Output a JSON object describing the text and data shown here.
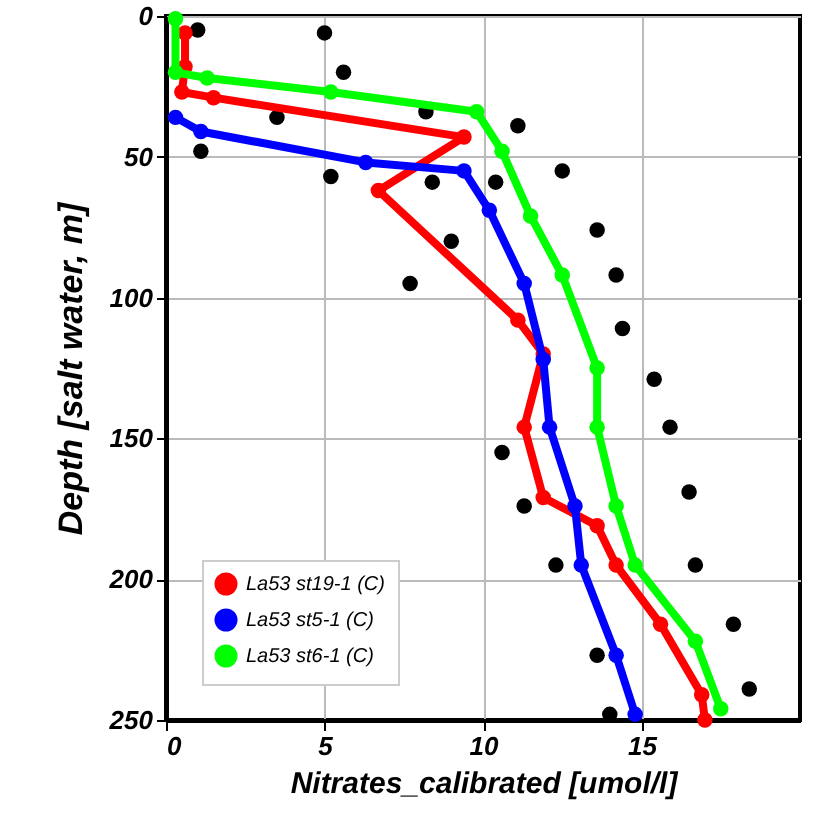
{
  "chart_data": {
    "type": "line",
    "xlabel": "Nitrates_calibrated [umol/l]",
    "ylabel": "Depth [salt water, m]",
    "xlim": [
      0,
      20
    ],
    "xticks": [
      0,
      5,
      10,
      15
    ],
    "ylim": [
      250,
      0
    ],
    "yticks": [
      0,
      50,
      100,
      150,
      200,
      250
    ],
    "grid": true,
    "legend": "bottom left",
    "marker": "circle",
    "series": [
      {
        "type": "scatter",
        "color": "#000000",
        "x": [
          1.0,
          3.5,
          5.0,
          5.6,
          8.2,
          1.1,
          5.2,
          8.4,
          10.4,
          9.0,
          7.7,
          11.1,
          12.5,
          13.6,
          14.2,
          14.4,
          15.4,
          15.9,
          16.5,
          16.7,
          17.9,
          18.4,
          10.6,
          11.3,
          12.3,
          13.6,
          14.0
        ],
        "values": [
          5,
          36,
          6,
          20,
          34,
          48,
          57,
          59,
          59,
          80,
          95,
          39,
          55,
          76,
          92,
          111,
          129,
          146,
          169,
          195,
          216,
          239,
          155,
          174,
          195,
          227,
          248
        ]
      },
      {
        "name": "La53 st19-1 (C)",
        "color": "#ff0000",
        "x": [
          0.6,
          0.6,
          0.5,
          1.5,
          9.4,
          6.7,
          11.1,
          11.9,
          11.3,
          11.9,
          13.6,
          14.2,
          15.6,
          16.9,
          17.0
        ],
        "values": [
          6,
          18,
          27,
          29,
          43,
          62,
          108,
          120,
          146,
          171,
          181,
          195,
          216,
          241,
          250
        ]
      },
      {
        "name": "La53 st5-1 (C)",
        "color": "#0000ff",
        "x": [
          0.3,
          1.1,
          6.3,
          9.4,
          10.2,
          11.3,
          11.9,
          12.1,
          12.9,
          13.1,
          14.2,
          14.8
        ],
        "values": [
          36,
          41,
          52,
          55,
          69,
          95,
          122,
          146,
          174,
          195,
          227,
          248
        ]
      },
      {
        "name": "La53 st6-1 (C)",
        "color": "#00ff00",
        "x": [
          0.3,
          0.3,
          1.3,
          5.2,
          9.8,
          10.6,
          11.5,
          12.5,
          13.6,
          13.6,
          14.2,
          14.8,
          16.7,
          17.5
        ],
        "values": [
          1,
          20,
          22,
          27,
          34,
          48,
          71,
          92,
          125,
          146,
          174,
          195,
          222,
          246
        ]
      }
    ]
  }
}
